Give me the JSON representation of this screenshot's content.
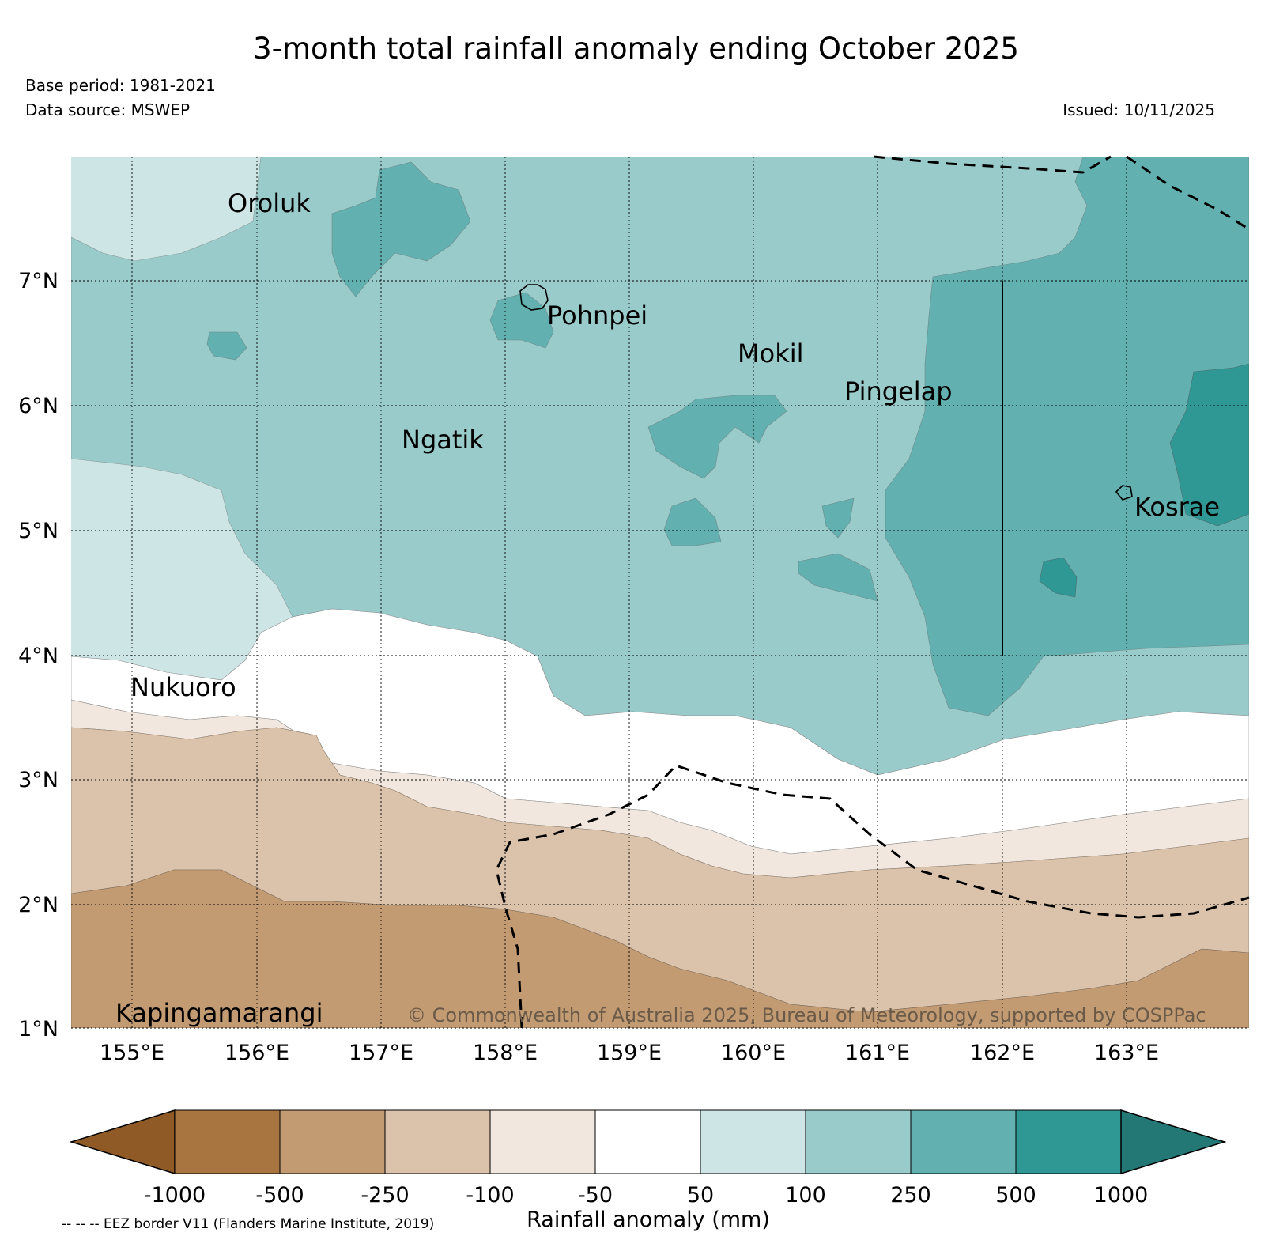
{
  "title": "3-month total rainfall anomaly ending October 2025",
  "base_period": "Base period: 1981-2021",
  "data_source": "Data source: MSWEP",
  "issued": "Issued: 10/11/2025",
  "copyright": "© Commonwealth of Australia 2025, Bureau of Meteorology, supported by COSPPac",
  "eez_note": "-- -- -- EEZ border V11 (Flanders Marine Institute, 2019)",
  "map": {
    "lat_labels": [
      "7°N",
      "6°N",
      "5°N",
      "4°N",
      "3°N",
      "2°N",
      "1°N"
    ],
    "lon_labels": [
      "155°E",
      "156°E",
      "157°E",
      "158°E",
      "159°E",
      "160°E",
      "161°E",
      "162°E",
      "163°E"
    ],
    "islands": {
      "oroluk": "Oroluk",
      "pohnpei": "Pohnpei",
      "mokil": "Mokil",
      "pingelap": "Pingelap",
      "ngatik": "Ngatik",
      "kosrae": "Kosrae",
      "nukuoro": "Nukuoro",
      "kapingamarangi": "Kapingamarangi"
    }
  },
  "colorbar": {
    "title": "Rainfall anomaly (mm)",
    "ticks": [
      "-1000",
      "-500",
      "-250",
      "-100",
      "-50",
      "50",
      "100",
      "250",
      "500",
      "1000"
    ],
    "colors": {
      "below_min": "#8f5a26",
      "c1": "#a8743f",
      "c2": "#c39b73",
      "c3": "#dbc3ab",
      "c4": "#f1e7de",
      "c5": "#ffffff",
      "c6": "#cde5e4",
      "c7": "#9acbcb",
      "c8": "#62b0b0",
      "c9": "#2f9794",
      "above_max": "#237875"
    }
  }
}
